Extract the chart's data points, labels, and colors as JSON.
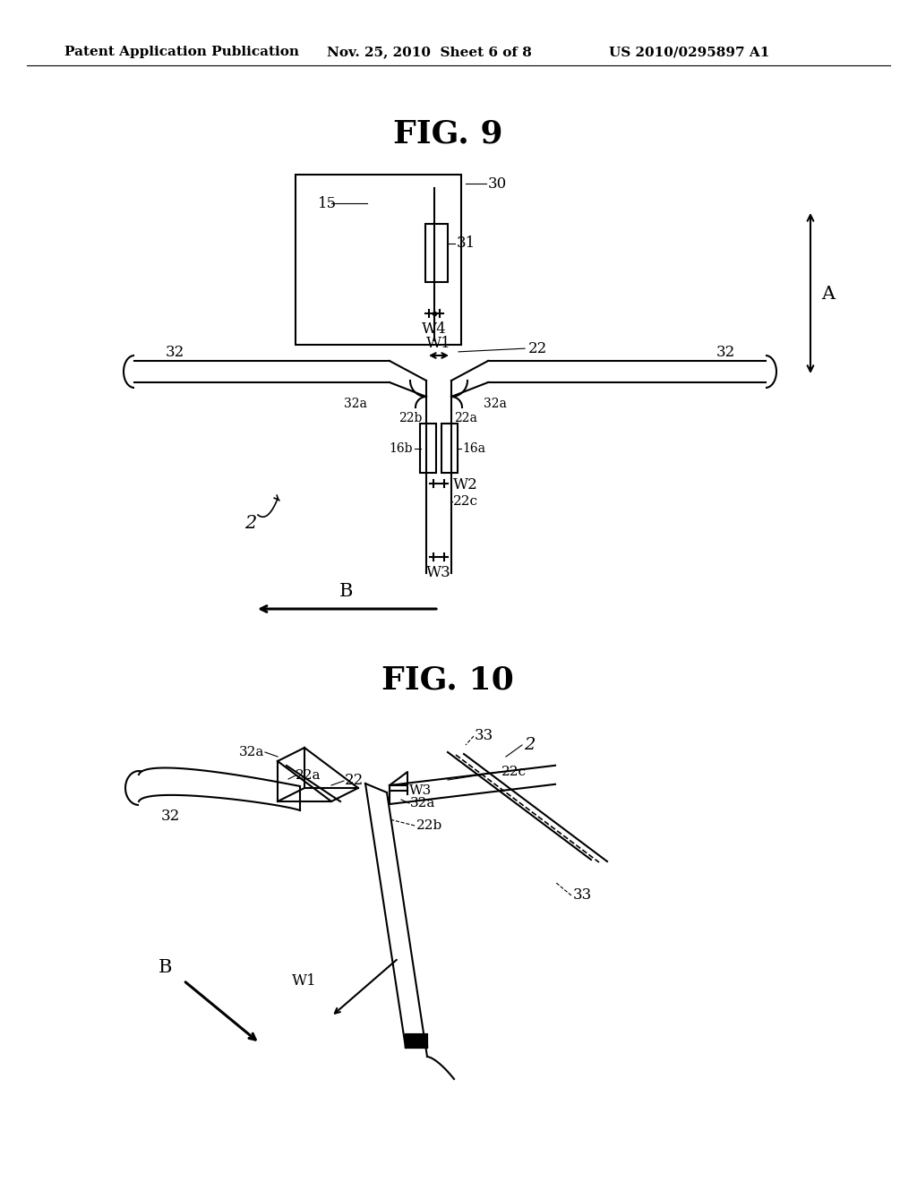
{
  "bg_color": "#ffffff",
  "header_text": "Patent Application Publication",
  "header_date": "Nov. 25, 2010  Sheet 6 of 8",
  "header_patent": "US 2010/0295897 A1",
  "fig9_title": "FIG. 9",
  "fig10_title": "FIG. 10"
}
